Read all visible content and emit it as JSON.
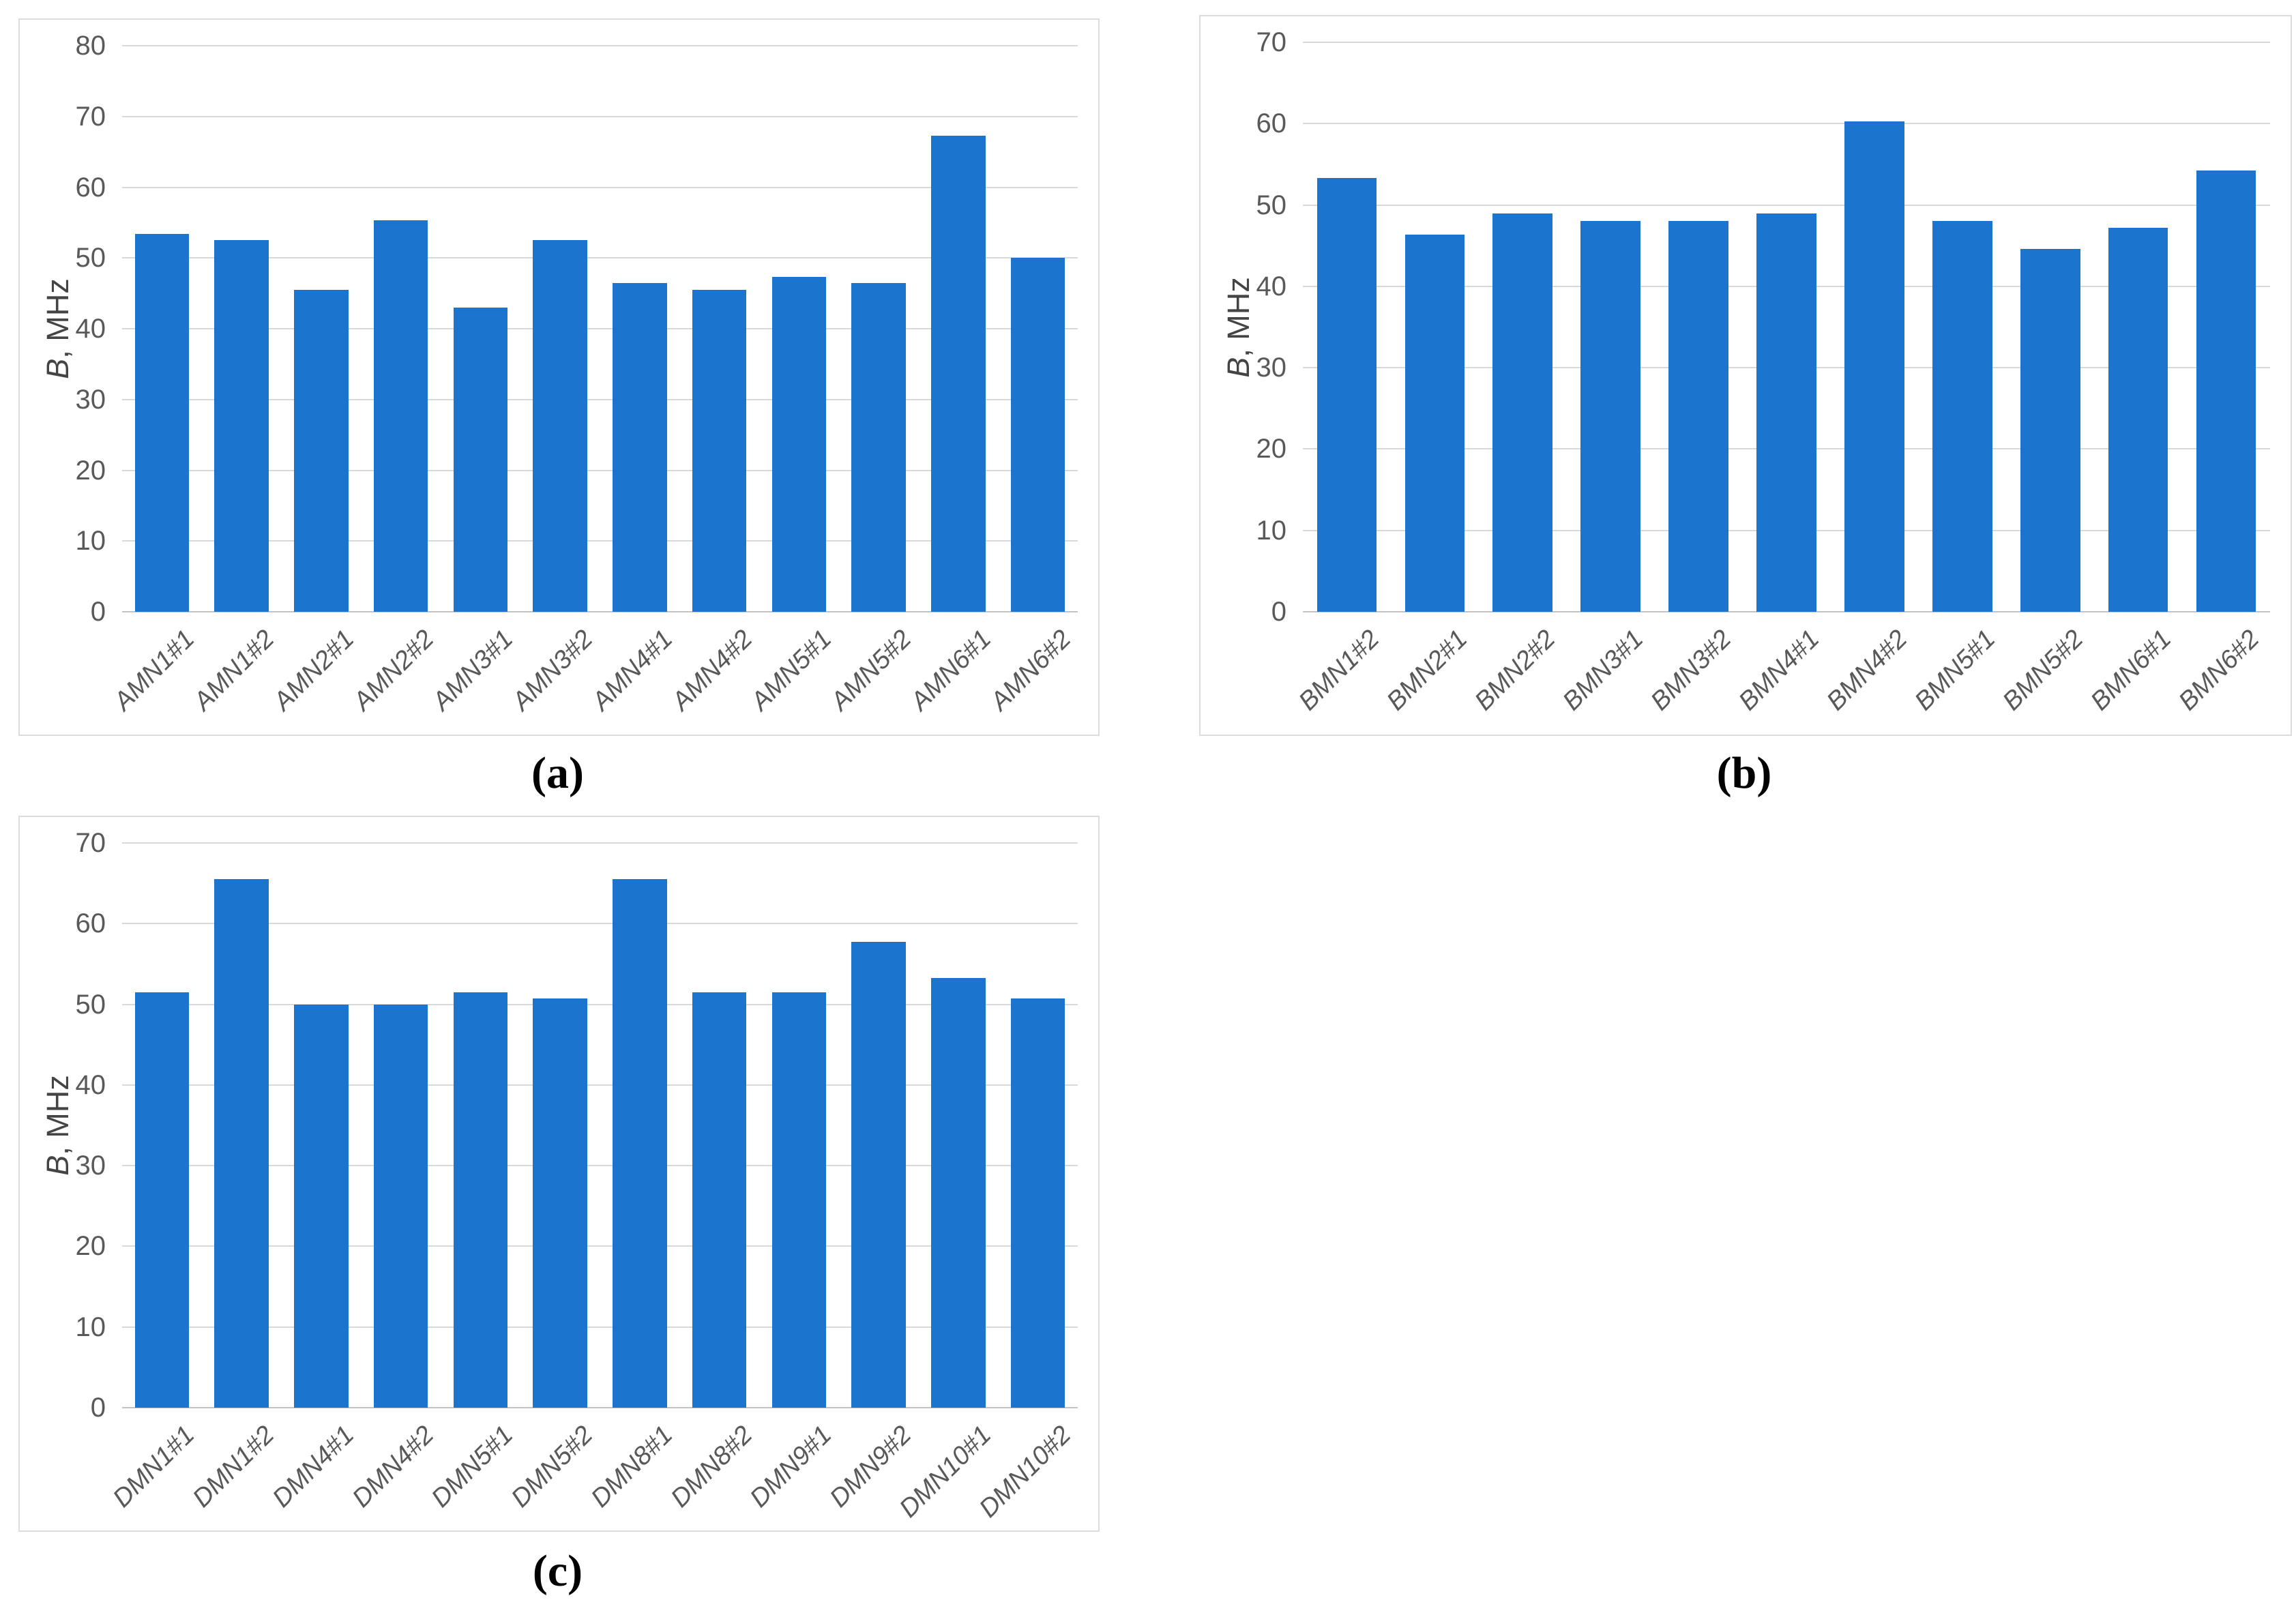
{
  "captions": {
    "a": "(a)",
    "b": "(b)",
    "c": "(c)"
  },
  "chart_data": [
    {
      "id": "a",
      "type": "bar",
      "title": "",
      "xlabel": "",
      "ylabel": "B, MHz",
      "ylabel_italic": "B",
      "ylabel_rest": ", MHz",
      "ylim": [
        0,
        80
      ],
      "ystep": 10,
      "grid": true,
      "legend": false,
      "bar_color": "#1b74ce",
      "categories": [
        "AMN1#1",
        "AMN1#2",
        "AMN2#1",
        "AMN2#2",
        "AMN3#1",
        "AMN3#2",
        "AMN4#1",
        "AMN4#2",
        "AMN5#1",
        "AMN5#2",
        "AMN6#1",
        "AMN6#2"
      ],
      "values": [
        53.4,
        52.5,
        45.5,
        55.3,
        43.0,
        52.5,
        46.5,
        45.5,
        47.3,
        46.5,
        67.3,
        50.0
      ]
    },
    {
      "id": "b",
      "type": "bar",
      "title": "",
      "xlabel": "",
      "ylabel": "B, MHz",
      "ylabel_italic": "B",
      "ylabel_rest": ", MHz",
      "ylim": [
        0,
        70
      ],
      "ystep": 10,
      "grid": true,
      "legend": false,
      "bar_color": "#1b74ce",
      "categories": [
        "BMN1#2",
        "BMN2#1",
        "BMN2#2",
        "BMN3#1",
        "BMN3#2",
        "BMN4#1",
        "BMN4#2",
        "BMN5#1",
        "BMN5#2",
        "BMN6#1",
        "BMN6#2"
      ],
      "values": [
        53.3,
        46.4,
        49.0,
        48.0,
        48.0,
        49.0,
        60.3,
        48.0,
        44.6,
        47.2,
        54.2
      ]
    },
    {
      "id": "c",
      "type": "bar",
      "title": "",
      "xlabel": "",
      "ylabel": "B, MHz",
      "ylabel_italic": "B",
      "ylabel_rest": ", MHz",
      "ylim": [
        0,
        70
      ],
      "ystep": 10,
      "grid": true,
      "legend": false,
      "bar_color": "#1b74ce",
      "categories": [
        "DMN1#1",
        "DMN1#2",
        "DMN4#1",
        "DMN4#2",
        "DMN5#1",
        "DMN5#2",
        "DMN8#1",
        "DMN8#2",
        "DMN9#1",
        "DMN9#2",
        "DMN10#1",
        "DMN10#2"
      ],
      "values": [
        51.5,
        65.5,
        50.0,
        50.0,
        51.5,
        50.7,
        65.5,
        51.5,
        51.5,
        57.7,
        53.3,
        50.7
      ]
    }
  ]
}
